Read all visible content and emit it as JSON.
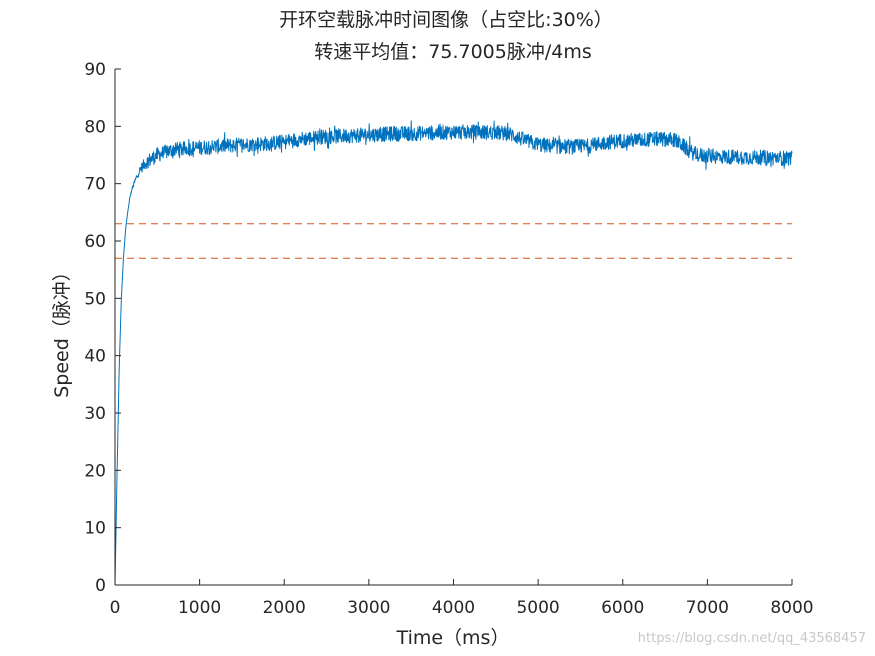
{
  "chart_data": {
    "type": "line",
    "title_line1": "开环空载脉冲时间图像（占空比:30%）",
    "title_line2": "转速平均值：75.7005脉冲/4ms",
    "xlabel": "Time（ms）",
    "ylabel": "Speed（脉冲）",
    "xlim": [
      0,
      8000
    ],
    "ylim": [
      0,
      90
    ],
    "xticks": [
      0,
      1000,
      2000,
      3000,
      4000,
      5000,
      6000,
      7000,
      8000
    ],
    "yticks": [
      0,
      10,
      20,
      30,
      40,
      50,
      60,
      70,
      80,
      90
    ],
    "grid": false,
    "series": [
      {
        "name": "Speed",
        "color": "#0072BD",
        "noise_amplitude": 1.3,
        "x": [
          0,
          25,
          50,
          75,
          100,
          125,
          150,
          175,
          200,
          250,
          300,
          350,
          400,
          500,
          600,
          700,
          800,
          1000,
          1200,
          1500,
          1800,
          2000,
          2200,
          2500,
          2800,
          3000,
          3300,
          3600,
          4000,
          4300,
          4600,
          4700,
          4800,
          5000,
          5200,
          5400,
          5600,
          5800,
          6000,
          6200,
          6400,
          6600,
          6700,
          6800,
          6900,
          7000,
          7200,
          7500,
          7800,
          8000
        ],
        "y": [
          0,
          20,
          38,
          50,
          57,
          62,
          65,
          67.5,
          69,
          71,
          72.5,
          73.5,
          74,
          75,
          75.5,
          76,
          76,
          76.3,
          76.5,
          76.8,
          77,
          77.3,
          77.8,
          78.2,
          78.4,
          78.5,
          78.7,
          78.8,
          79,
          79,
          78.8,
          78.5,
          77.8,
          76.8,
          76.5,
          76.4,
          76.6,
          77.2,
          77.5,
          77.6,
          77.8,
          77.7,
          76.8,
          75.5,
          75,
          74.8,
          74.7,
          74.6,
          74.5,
          74.4
        ]
      }
    ],
    "reference_lines": [
      {
        "y": 63,
        "color": "#D95319",
        "style": "dashed"
      },
      {
        "y": 57,
        "color": "#D95319",
        "style": "dashed"
      }
    ]
  },
  "watermark": "https://blog.csdn.net/qq_43568457"
}
